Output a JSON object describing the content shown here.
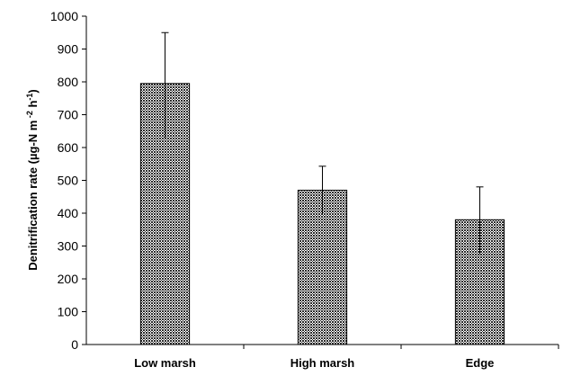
{
  "chart_data": {
    "type": "bar",
    "categories": [
      "Low marsh",
      "High marsh",
      "Edge"
    ],
    "values": [
      795,
      470,
      380
    ],
    "error_upper": [
      950,
      543,
      480
    ],
    "error_lower": [
      630,
      395,
      275
    ],
    "ylabel": {
      "prefix": "Denitrification rate (µg-N m",
      "sup1": " -2",
      "mid": " h",
      "sup2": "-1",
      "suffix": ")"
    },
    "ylim": [
      0,
      1000
    ],
    "yticks": [
      0,
      100,
      200,
      300,
      400,
      500,
      600,
      700,
      800,
      900,
      1000
    ],
    "grid": false,
    "legend": "none",
    "bar_fill": "crosshatch-dark",
    "colors": {
      "bar_stroke": "#000000",
      "bar_pattern": "#333333"
    }
  }
}
